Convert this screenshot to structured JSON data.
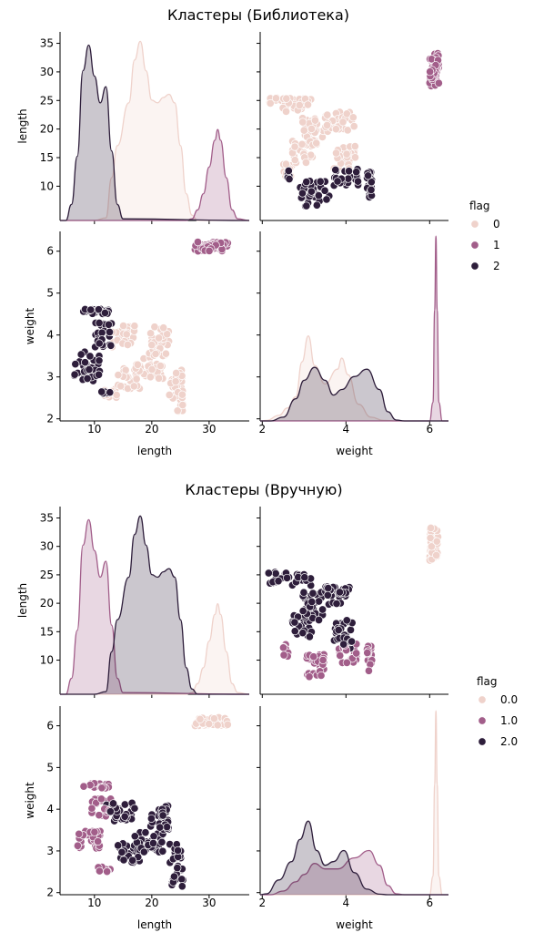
{
  "colors": {
    "c0": "#efd2cb",
    "c1": "#a25e8a",
    "c2": "#2e1e3b"
  },
  "chart_data": [
    {
      "type": "pairplot",
      "title": "Кластеры (Библиотека)",
      "variables": [
        "length",
        "weight"
      ],
      "axis_labels": {
        "length": "length",
        "weight": "weight"
      },
      "ranges": {
        "length": [
          4,
          37
        ],
        "weight": [
          1.95,
          6.45
        ]
      },
      "ticks": {
        "length": [
          10,
          20,
          30
        ],
        "length_y": [
          10,
          15,
          20,
          25,
          30,
          35
        ],
        "weight": [
          2,
          4,
          6
        ],
        "weight_y": [
          2,
          3,
          4,
          5,
          6
        ]
      },
      "legend": {
        "title": "flag",
        "labels": [
          "0",
          "1",
          "2"
        ],
        "placement": "right"
      },
      "series": [
        {
          "name": "0",
          "clusters": [
            {
              "lr": [
                11.5,
                14.5
              ],
              "wr": [
                2.5,
                2.75
              ],
              "n": 12
            },
            {
              "lr": [
                14,
                18
              ],
              "wr": [
                2.7,
                3.2
              ],
              "n": 20
            },
            {
              "lr": [
                17,
                22
              ],
              "wr": [
                2.95,
                3.45
              ],
              "n": 30
            },
            {
              "lr": [
                19.5,
                23
              ],
              "wr": [
                3.45,
                4.2
              ],
              "n": 35
            },
            {
              "lr": [
                13,
                17
              ],
              "wr": [
                3.7,
                4.25
              ],
              "n": 25
            },
            {
              "lr": [
                23,
                25.5
              ],
              "wr": [
                2.15,
                2.9
              ],
              "n": 26
            },
            {
              "lr": [
                23.5,
                25.5
              ],
              "wr": [
                2.9,
                3.2
              ],
              "n": 8
            }
          ]
        },
        {
          "name": "1",
          "clusters": [
            {
              "lr": [
                27.5,
                33.5
              ],
              "wr": [
                6.0,
                6.22
              ],
              "n": 45
            }
          ]
        },
        {
          "name": "2",
          "clusters": [
            {
              "lr": [
                6.5,
                11
              ],
              "wr": [
                2.9,
                3.6
              ],
              "n": 35
            },
            {
              "lr": [
                10.5,
                13
              ],
              "wr": [
                2.55,
                2.65
              ],
              "n": 8
            },
            {
              "lr": [
                10,
                13
              ],
              "wr": [
                3.7,
                4.3
              ],
              "n": 22
            },
            {
              "lr": [
                8,
                12.5
              ],
              "wr": [
                4.5,
                4.62
              ],
              "n": 20
            }
          ]
        }
      ],
      "kde_length": [
        {
          "name": "0",
          "values": [
            [
              4,
              0.0
            ],
            [
              10,
              0.0
            ],
            [
              12,
              0.5
            ],
            [
              13,
              8
            ],
            [
              14,
              14
            ],
            [
              16,
              22
            ],
            [
              17,
              30
            ],
            [
              18,
              33.5
            ],
            [
              19,
              28
            ],
            [
              20,
              22.5
            ],
            [
              21,
              22
            ],
            [
              22,
              23
            ],
            [
              23,
              23.6
            ],
            [
              24,
              22
            ],
            [
              25,
              14
            ],
            [
              26,
              5
            ],
            [
              27,
              1
            ],
            [
              28,
              0.0
            ],
            [
              37,
              0.0
            ]
          ]
        },
        {
          "name": "1",
          "values": [
            [
              4,
              0.0
            ],
            [
              26,
              0.0
            ],
            [
              27,
              0.3
            ],
            [
              28,
              2
            ],
            [
              29,
              5
            ],
            [
              30,
              10
            ],
            [
              31,
              15
            ],
            [
              31.5,
              17
            ],
            [
              32,
              15
            ],
            [
              33,
              8
            ],
            [
              34,
              2
            ],
            [
              35,
              0.3
            ],
            [
              37,
              0.0
            ]
          ]
        },
        {
          "name": "2",
          "values": [
            [
              4,
              0.0
            ],
            [
              5,
              0.0
            ],
            [
              6,
              3
            ],
            [
              7,
              12
            ],
            [
              8,
              28
            ],
            [
              9,
              32.8
            ],
            [
              10,
              27
            ],
            [
              11,
              22
            ],
            [
              12,
              25
            ],
            [
              13,
              13
            ],
            [
              14,
              3
            ],
            [
              15,
              0.3
            ],
            [
              37,
              0.0
            ]
          ]
        }
      ],
      "kde_weight": [
        {
          "name": "0",
          "values": [
            [
              1.95,
              0.0
            ],
            [
              2.1,
              0.3
            ],
            [
              2.4,
              3
            ],
            [
              2.6,
              7
            ],
            [
              2.8,
              13
            ],
            [
              2.95,
              32
            ],
            [
              3.1,
              46
            ],
            [
              3.25,
              30
            ],
            [
              3.5,
              20
            ],
            [
              3.8,
              28
            ],
            [
              3.9,
              34
            ],
            [
              4.05,
              25
            ],
            [
              4.3,
              9
            ],
            [
              4.6,
              2
            ],
            [
              4.9,
              0.3
            ],
            [
              5.2,
              0.0
            ],
            [
              6.45,
              0.0
            ]
          ]
        },
        {
          "name": "1",
          "values": [
            [
              1.95,
              0.0
            ],
            [
              6.0,
              0.0
            ],
            [
              6.08,
              10
            ],
            [
              6.12,
              60
            ],
            [
              6.15,
              100
            ],
            [
              6.18,
              60
            ],
            [
              6.22,
              10
            ],
            [
              6.3,
              0.0
            ],
            [
              6.45,
              0.0
            ]
          ]
        },
        {
          "name": "2",
          "values": [
            [
              1.95,
              0.0
            ],
            [
              2.2,
              0.0
            ],
            [
              2.5,
              2
            ],
            [
              2.8,
              12
            ],
            [
              3.0,
              22
            ],
            [
              3.25,
              29
            ],
            [
              3.5,
              22
            ],
            [
              3.7,
              14
            ],
            [
              3.9,
              17
            ],
            [
              4.2,
              24
            ],
            [
              4.5,
              28
            ],
            [
              4.8,
              17
            ],
            [
              5.0,
              5
            ],
            [
              5.2,
              0.5
            ],
            [
              5.4,
              0.0
            ],
            [
              6.45,
              0.0
            ]
          ]
        }
      ]
    },
    {
      "type": "pairplot",
      "title": "Кластеры (Вручную)",
      "variables": [
        "length",
        "weight"
      ],
      "axis_labels": {
        "length": "length",
        "weight": "weight"
      },
      "ranges": {
        "length": [
          4,
          37
        ],
        "weight": [
          1.95,
          6.45
        ]
      },
      "ticks": {
        "length": [
          10,
          20,
          30
        ],
        "length_y": [
          10,
          15,
          20,
          25,
          30,
          35
        ],
        "weight": [
          2,
          4,
          6
        ],
        "weight_y": [
          2,
          3,
          4,
          5,
          6
        ]
      },
      "legend": {
        "title": "flag",
        "labels": [
          "0.0",
          "1.0",
          "2.0"
        ],
        "placement": "right"
      },
      "series": [
        {
          "name": "0.0",
          "clusters": [
            {
              "lr": [
                27.5,
                33.5
              ],
              "wr": [
                6.0,
                6.22
              ],
              "n": 40
            }
          ]
        },
        {
          "name": "1.0",
          "clusters": [
            {
              "lr": [
                7,
                11
              ],
              "wr": [
                3.05,
                3.5
              ],
              "n": 30
            },
            {
              "lr": [
                10.5,
                13
              ],
              "wr": [
                2.5,
                2.65
              ],
              "n": 8
            },
            {
              "lr": [
                8,
                12.5
              ],
              "wr": [
                4.5,
                4.62
              ],
              "n": 20
            },
            {
              "lr": [
                9.5,
                13
              ],
              "wr": [
                3.8,
                4.25
              ],
              "n": 18
            }
          ]
        },
        {
          "name": "2.0",
          "clusters": [
            {
              "lr": [
                14,
                18
              ],
              "wr": [
                2.7,
                3.2
              ],
              "n": 22
            },
            {
              "lr": [
                17,
                22
              ],
              "wr": [
                2.95,
                3.45
              ],
              "n": 30
            },
            {
              "lr": [
                19.5,
                23
              ],
              "wr": [
                3.45,
                4.1
              ],
              "n": 35
            },
            {
              "lr": [
                12,
                17
              ],
              "wr": [
                3.7,
                4.15
              ],
              "n": 25
            },
            {
              "lr": [
                23,
                25.5
              ],
              "wr": [
                2.15,
                3.2
              ],
              "n": 32
            }
          ]
        }
      ],
      "kde_length": [
        {
          "name": "0.0",
          "values": [
            [
              4,
              0.0
            ],
            [
              26,
              0.0
            ],
            [
              27,
              0.3
            ],
            [
              28,
              2
            ],
            [
              29,
              5
            ],
            [
              30,
              10
            ],
            [
              31,
              15
            ],
            [
              31.5,
              17
            ],
            [
              32,
              15
            ],
            [
              33,
              8
            ],
            [
              34,
              2
            ],
            [
              35,
              0.3
            ],
            [
              37,
              0.0
            ]
          ]
        },
        {
          "name": "1.0",
          "values": [
            [
              4,
              0.0
            ],
            [
              5,
              0.0
            ],
            [
              6,
              3
            ],
            [
              7,
              12
            ],
            [
              8,
              28
            ],
            [
              9,
              32.8
            ],
            [
              10,
              27
            ],
            [
              11,
              22
            ],
            [
              12,
              25
            ],
            [
              13,
              13
            ],
            [
              14,
              3
            ],
            [
              15,
              0.3
            ],
            [
              37,
              0.0
            ]
          ]
        },
        {
          "name": "2.0",
          "values": [
            [
              4,
              0.0
            ],
            [
              10,
              0.0
            ],
            [
              12,
              0.5
            ],
            [
              13,
              8
            ],
            [
              14,
              14
            ],
            [
              16,
              22
            ],
            [
              17,
              30
            ],
            [
              18,
              33.5
            ],
            [
              19,
              28
            ],
            [
              20,
              22.5
            ],
            [
              21,
              22
            ],
            [
              22,
              23
            ],
            [
              23,
              23.6
            ],
            [
              24,
              22
            ],
            [
              25,
              14
            ],
            [
              26,
              5
            ],
            [
              27,
              1
            ],
            [
              28,
              0.0
            ],
            [
              37,
              0.0
            ]
          ]
        }
      ],
      "kde_weight": [
        {
          "name": "0.0",
          "values": [
            [
              1.95,
              0.0
            ],
            [
              6.0,
              0.0
            ],
            [
              6.08,
              10
            ],
            [
              6.12,
              60
            ],
            [
              6.15,
              100
            ],
            [
              6.18,
              60
            ],
            [
              6.22,
              10
            ],
            [
              6.3,
              0.0
            ],
            [
              6.45,
              0.0
            ]
          ]
        },
        {
          "name": "1.0",
          "values": [
            [
              1.95,
              0.0
            ],
            [
              2.2,
              0.0
            ],
            [
              2.5,
              2
            ],
            [
              2.8,
              7
            ],
            [
              3.0,
              11
            ],
            [
              3.25,
              17
            ],
            [
              3.5,
              14
            ],
            [
              3.8,
              14
            ],
            [
              4.2,
              20
            ],
            [
              4.55,
              24
            ],
            [
              4.8,
              16
            ],
            [
              5.0,
              5
            ],
            [
              5.2,
              0.5
            ],
            [
              5.4,
              0.0
            ],
            [
              6.45,
              0.0
            ]
          ]
        },
        {
          "name": "2.0",
          "values": [
            [
              1.95,
              0.0
            ],
            [
              2.1,
              0.5
            ],
            [
              2.4,
              8
            ],
            [
              2.7,
              18
            ],
            [
              2.9,
              30
            ],
            [
              3.1,
              40
            ],
            [
              3.3,
              24
            ],
            [
              3.5,
              16
            ],
            [
              3.7,
              18
            ],
            [
              3.95,
              24
            ],
            [
              4.2,
              12
            ],
            [
              4.5,
              3
            ],
            [
              4.8,
              0.3
            ],
            [
              5.0,
              0.0
            ],
            [
              6.45,
              0.0
            ]
          ]
        }
      ]
    }
  ]
}
